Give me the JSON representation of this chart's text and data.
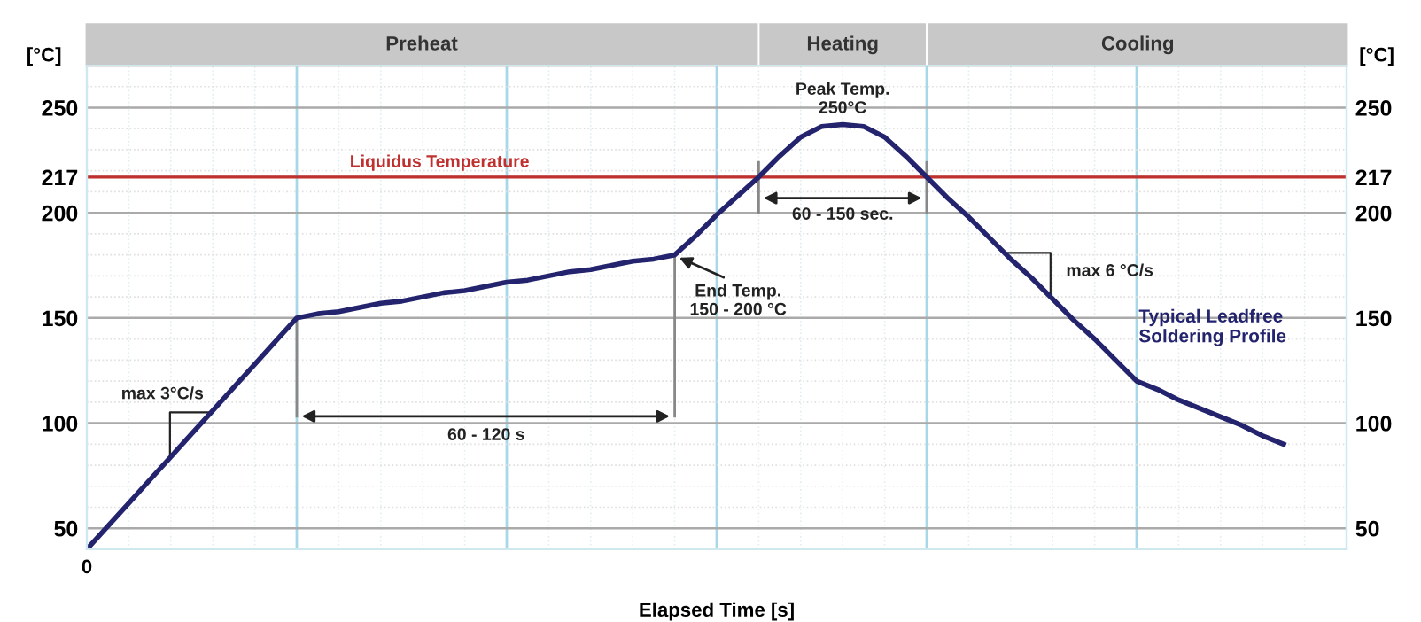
{
  "chart_data": {
    "type": "line",
    "xlabel": "Elapsed Time [s]",
    "ylabel": "[°C]",
    "y2label": "[°C]",
    "categories": [
      null,
      null,
      null,
      null,
      null,
      null,
      null,
      null,
      null,
      null,
      null,
      null,
      null,
      null,
      null,
      null,
      null,
      null,
      null,
      null,
      null,
      null,
      null,
      null,
      null,
      null,
      null,
      null,
      null,
      null,
      null,
      null,
      null,
      null,
      null,
      null,
      null,
      null,
      null,
      null,
      null,
      null,
      null,
      null,
      null,
      null,
      null,
      null,
      null,
      null,
      null,
      null,
      null,
      null,
      null,
      null,
      null,
      null,
      null,
      null,
      null
    ],
    "series": [
      {
        "name": "Typical Leadfree Soldering Profile",
        "color": "#23236e",
        "values": [
          40,
          51,
          62,
          73,
          84,
          95,
          106,
          117,
          128,
          139,
          150,
          152,
          153,
          155,
          157,
          158,
          160,
          162,
          163,
          165,
          167,
          168,
          170,
          172,
          173,
          175,
          177,
          178,
          180,
          189,
          199,
          208,
          217,
          227,
          236,
          241,
          242,
          241,
          236,
          227,
          217,
          207,
          198,
          188,
          178,
          169,
          159,
          149,
          140,
          130,
          120,
          116,
          111,
          107,
          103,
          99,
          94,
          90,
          null,
          null,
          null
        ]
      }
    ],
    "ylim": [
      40,
      270
    ],
    "yticks": [
      50,
      100,
      150,
      200,
      217,
      250
    ],
    "y2lim": [
      40,
      270
    ],
    "y2ticks": [
      50,
      100,
      150,
      200,
      217,
      250
    ],
    "ref_lines": [
      {
        "axis": "y",
        "value": 217,
        "label": "Liquidus Temperature",
        "color": "#c0302f"
      }
    ],
    "annotations": [
      "0",
      "Preheat",
      "Heating",
      "Cooling",
      "max 3°C/s",
      "60 - 120 s",
      "End Temp.\n150 - 200 °C",
      "Peak Temp.\n250°C",
      "60 - 150 sec.",
      "max 6 °C/s"
    ],
    "grid": true,
    "marker": "none",
    "line_style": "solid"
  }
}
